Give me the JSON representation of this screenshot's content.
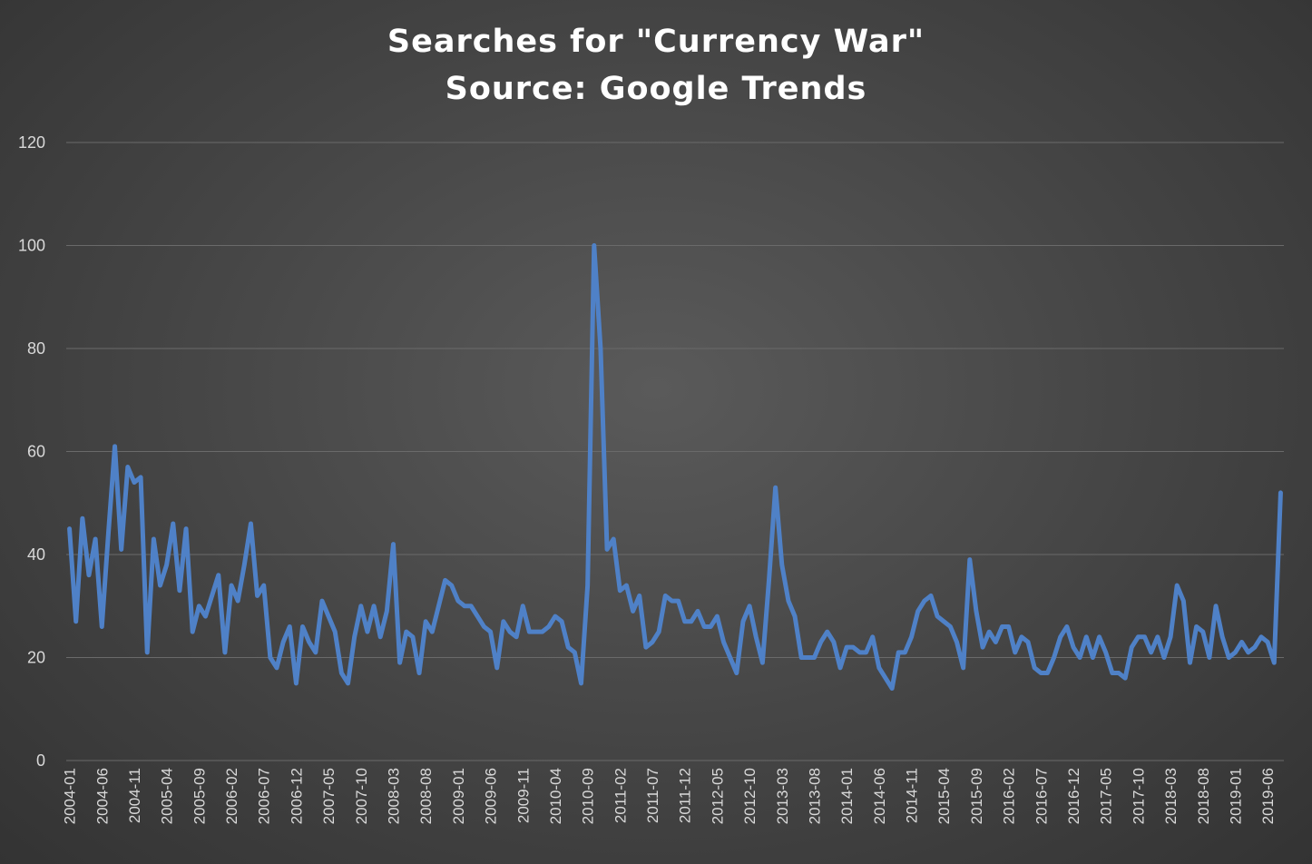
{
  "chart_data": {
    "type": "line",
    "title": "Searches for \"Currency War\"",
    "subtitle": "Source: Google Trends",
    "xlabel": "",
    "ylabel": "",
    "ylim": [
      0,
      120
    ],
    "yticks": [
      0,
      20,
      40,
      60,
      80,
      100,
      120
    ],
    "grid": true,
    "x_start": "2004-01",
    "x_end": "2019-08",
    "x_tick_labels": [
      "2004-01",
      "2004-06",
      "2004-11",
      "2005-04",
      "2005-09",
      "2006-02",
      "2006-07",
      "2006-12",
      "2007-05",
      "2007-10",
      "2008-03",
      "2008-08",
      "2009-01",
      "2009-06",
      "2009-11",
      "2010-04",
      "2010-09",
      "2011-02",
      "2011-07",
      "2011-12",
      "2012-05",
      "2012-10",
      "2013-03",
      "2013-08",
      "2014-01",
      "2014-06",
      "2014-11",
      "2015-04",
      "2015-09",
      "2016-02",
      "2016-07",
      "2016-12",
      "2017-05",
      "2017-10",
      "2018-03",
      "2018-08",
      "2019-01",
      "2019-06"
    ],
    "series": [
      {
        "name": "",
        "color": "#4f81c7",
        "values": [
          45,
          27,
          47,
          36,
          43,
          26,
          44,
          61,
          41,
          57,
          54,
          55,
          21,
          43,
          34,
          38,
          46,
          33,
          45,
          25,
          30,
          28,
          32,
          36,
          21,
          34,
          31,
          38,
          46,
          32,
          34,
          20,
          18,
          23,
          26,
          15,
          26,
          23,
          21,
          31,
          28,
          25,
          17,
          15,
          24,
          30,
          25,
          30,
          24,
          29,
          42,
          19,
          25,
          24,
          17,
          27,
          25,
          30,
          35,
          34,
          31,
          30,
          30,
          28,
          26,
          25,
          18,
          27,
          25,
          24,
          30,
          25,
          25,
          25,
          26,
          28,
          27,
          22,
          21,
          15,
          34,
          100,
          80,
          41,
          43,
          33,
          34,
          29,
          32,
          22,
          23,
          25,
          32,
          31,
          31,
          27,
          27,
          29,
          26,
          26,
          28,
          23,
          20,
          17,
          27,
          30,
          24,
          19,
          35,
          53,
          38,
          31,
          28,
          20,
          20,
          20,
          23,
          25,
          23,
          18,
          22,
          22,
          21,
          21,
          24,
          18,
          16,
          14,
          21,
          21,
          24,
          29,
          31,
          32,
          28,
          27,
          26,
          23,
          18,
          39,
          29,
          22,
          25,
          23,
          26,
          26,
          21,
          24,
          23,
          18,
          17,
          17,
          20,
          24,
          26,
          22,
          20,
          24,
          20,
          24,
          21,
          17,
          17,
          16,
          22,
          24,
          24,
          21,
          24,
          20,
          24,
          34,
          31,
          19,
          26,
          25,
          20,
          30,
          24,
          20,
          21,
          23,
          21,
          22,
          24,
          23,
          19,
          52
        ]
      }
    ]
  }
}
